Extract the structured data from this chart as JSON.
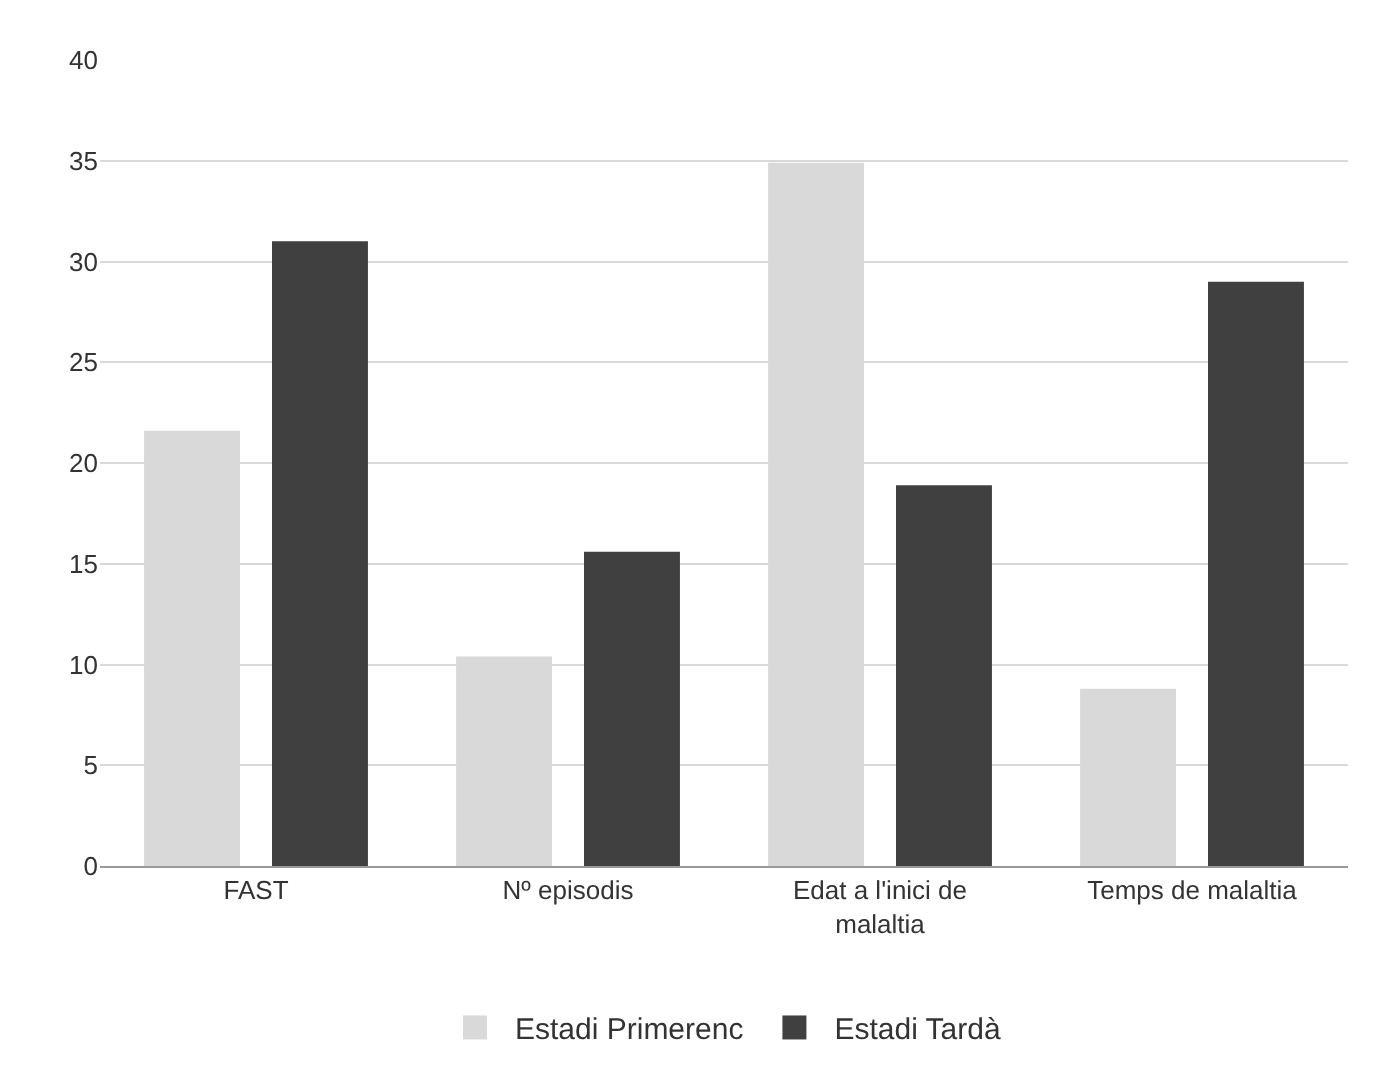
{
  "chart_data": {
    "type": "bar",
    "categories": [
      "FAST",
      "Nº episodis",
      "Edat a l'inici de malaltia",
      "Temps de malaltia"
    ],
    "series": [
      {
        "name": "Estadi Primerenc",
        "color": "#d9d9d9",
        "values": [
          21.6,
          10.4,
          34.9,
          8.8
        ]
      },
      {
        "name": "Estadi Tardà",
        "color": "#404040",
        "values": [
          31.0,
          15.6,
          18.9,
          29.0
        ]
      }
    ],
    "ylim": [
      0,
      40
    ],
    "yticks": [
      0,
      5,
      10,
      15,
      20,
      25,
      30,
      35,
      40
    ],
    "grid": "y",
    "legend": "bottom"
  }
}
